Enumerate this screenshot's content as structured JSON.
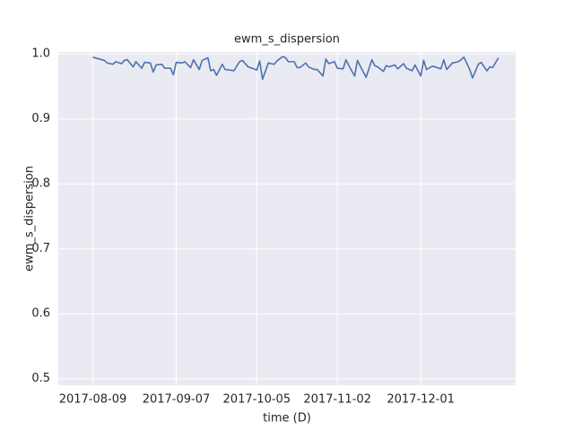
{
  "chart_data": {
    "type": "line",
    "title": "ewm_s_dispersion",
    "xlabel": "time (D)",
    "ylabel": "ewm_s_dispersion",
    "x": [
      "2017-08-09",
      "2017-08-13",
      "2017-08-14",
      "2017-08-16",
      "2017-08-17",
      "2017-08-19",
      "2017-08-20",
      "2017-08-21",
      "2017-08-23",
      "2017-08-24",
      "2017-08-26",
      "2017-08-27",
      "2017-08-29",
      "2017-08-30",
      "2017-08-31",
      "2017-09-02",
      "2017-09-03",
      "2017-09-05",
      "2017-09-06",
      "2017-09-07",
      "2017-09-09",
      "2017-09-10",
      "2017-09-12",
      "2017-09-13",
      "2017-09-15",
      "2017-09-16",
      "2017-09-18",
      "2017-09-19",
      "2017-09-20",
      "2017-09-21",
      "2017-09-23",
      "2017-09-24",
      "2017-09-26",
      "2017-09-27",
      "2017-09-29",
      "2017-09-30",
      "2017-10-02",
      "2017-10-04",
      "2017-10-05",
      "2017-10-06",
      "2017-10-07",
      "2017-10-09",
      "2017-10-11",
      "2017-10-12",
      "2017-10-14",
      "2017-10-15",
      "2017-10-16",
      "2017-10-18",
      "2017-10-19",
      "2017-10-20",
      "2017-10-22",
      "2017-10-23",
      "2017-10-25",
      "2017-10-26",
      "2017-10-28",
      "2017-10-29",
      "2017-10-30",
      "2017-11-01",
      "2017-11-02",
      "2017-11-04",
      "2017-11-05",
      "2017-11-06",
      "2017-11-08",
      "2017-11-09",
      "2017-11-10",
      "2017-11-12",
      "2017-11-14",
      "2017-11-15",
      "2017-11-16",
      "2017-11-18",
      "2017-11-19",
      "2017-11-20",
      "2017-11-22",
      "2017-11-23",
      "2017-11-25",
      "2017-11-26",
      "2017-11-28",
      "2017-11-29",
      "2017-12-01",
      "2017-12-02",
      "2017-12-03",
      "2017-12-05",
      "2017-12-06",
      "2017-12-08",
      "2017-12-09",
      "2017-12-10",
      "2017-12-12",
      "2017-12-14",
      "2017-12-15",
      "2017-12-16",
      "2017-12-18",
      "2017-12-19",
      "2017-12-21",
      "2017-12-22",
      "2017-12-24",
      "2017-12-25",
      "2017-12-26",
      "2017-12-28"
    ],
    "series": [
      {
        "name": "ewm_s_dispersion",
        "color": "#4c72b0",
        "values": [
          0.995,
          0.99,
          0.986,
          0.984,
          0.988,
          0.985,
          0.99,
          0.991,
          0.98,
          0.988,
          0.978,
          0.987,
          0.986,
          0.972,
          0.983,
          0.984,
          0.978,
          0.978,
          0.968,
          0.987,
          0.986,
          0.988,
          0.979,
          0.991,
          0.976,
          0.99,
          0.994,
          0.974,
          0.976,
          0.967,
          0.984,
          0.976,
          0.975,
          0.974,
          0.988,
          0.99,
          0.98,
          0.977,
          0.975,
          0.989,
          0.961,
          0.986,
          0.984,
          0.989,
          0.996,
          0.994,
          0.988,
          0.988,
          0.979,
          0.979,
          0.986,
          0.98,
          0.976,
          0.976,
          0.966,
          0.992,
          0.985,
          0.988,
          0.978,
          0.977,
          0.991,
          0.982,
          0.966,
          0.99,
          0.981,
          0.964,
          0.991,
          0.982,
          0.98,
          0.973,
          0.982,
          0.98,
          0.983,
          0.977,
          0.985,
          0.978,
          0.974,
          0.983,
          0.966,
          0.99,
          0.976,
          0.981,
          0.98,
          0.977,
          0.991,
          0.976,
          0.986,
          0.988,
          0.991,
          0.995,
          0.976,
          0.963,
          0.984,
          0.987,
          0.974,
          0.98,
          0.979,
          0.994
        ]
      }
    ],
    "xlim": [
      "2017-07-28",
      "2018-01-03"
    ],
    "xticks": [
      "2017-08-09",
      "2017-09-07",
      "2017-10-05",
      "2017-11-02",
      "2017-12-01"
    ],
    "ylim": [
      0.49,
      1.003
    ],
    "yticks": [
      0.5,
      0.6,
      0.7,
      0.8,
      0.9,
      {
        "value": 1,
        "label": "1.0"
      }
    ],
    "grid": true
  }
}
